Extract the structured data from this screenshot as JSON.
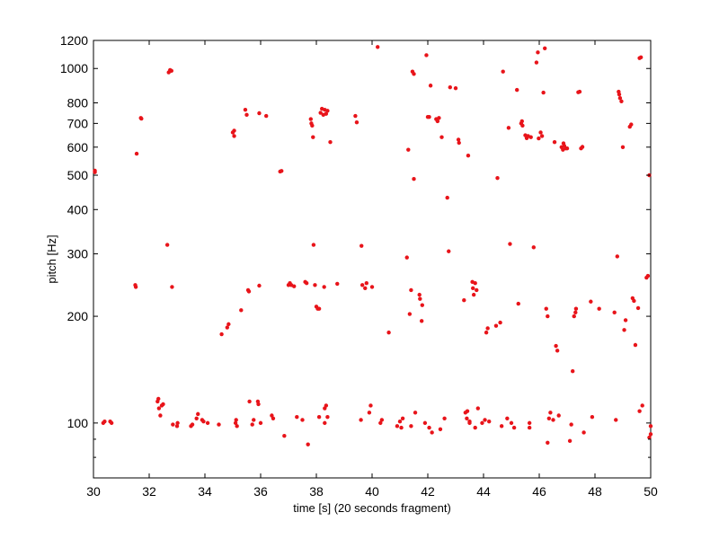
{
  "chart_data": {
    "type": "scatter",
    "title": "",
    "xlabel": "time [s] (20 seconds fragment)",
    "ylabel": "pitch [Hz]",
    "xlim": [
      30,
      50
    ],
    "ylim": [
      70,
      1200
    ],
    "y_scale": "log",
    "grid": false,
    "x_ticks": [
      30,
      32,
      34,
      36,
      38,
      40,
      42,
      44,
      46,
      48,
      50
    ],
    "x_tick_labels": [
      "30",
      "32",
      "34",
      "36",
      "38",
      "40",
      "42",
      "44",
      "46",
      "48",
      "50"
    ],
    "y_ticks": [
      100,
      200,
      300,
      400,
      500,
      600,
      700,
      800,
      1000,
      1200
    ],
    "y_tick_labels": [
      "100",
      "200",
      "300",
      "400",
      "500",
      "600",
      "700",
      "800",
      "1000",
      "1200"
    ],
    "marker_color": "#e8141a",
    "series": [
      {
        "points": [
          [
            30.05,
            515
          ],
          [
            30.05,
            510
          ],
          [
            30.35,
            100
          ],
          [
            30.4,
            101
          ],
          [
            30.6,
            101
          ],
          [
            30.65,
            100
          ],
          [
            31.5,
            245
          ],
          [
            31.52,
            242
          ],
          [
            31.55,
            575
          ],
          [
            31.7,
            725
          ],
          [
            31.72,
            722
          ],
          [
            32.3,
            115
          ],
          [
            32.33,
            117
          ],
          [
            32.35,
            110
          ],
          [
            32.4,
            105
          ],
          [
            32.45,
            112
          ],
          [
            32.5,
            113
          ],
          [
            32.65,
            318
          ],
          [
            32.7,
            975
          ],
          [
            32.75,
            990
          ],
          [
            32.8,
            985
          ],
          [
            32.82,
            242
          ],
          [
            32.85,
            99
          ],
          [
            33.0,
            98
          ],
          [
            33.02,
            100
          ],
          [
            33.5,
            98
          ],
          [
            33.55,
            99
          ],
          [
            33.7,
            103
          ],
          [
            33.75,
            106
          ],
          [
            33.9,
            102
          ],
          [
            33.95,
            101
          ],
          [
            34.1,
            100
          ],
          [
            34.5,
            99
          ],
          [
            34.6,
            178
          ],
          [
            34.8,
            186
          ],
          [
            34.85,
            190
          ],
          [
            35.0,
            660
          ],
          [
            35.05,
            668
          ],
          [
            35.05,
            645
          ],
          [
            35.1,
            100
          ],
          [
            35.12,
            102
          ],
          [
            35.15,
            98
          ],
          [
            35.3,
            208
          ],
          [
            35.45,
            765
          ],
          [
            35.5,
            740
          ],
          [
            35.55,
            237
          ],
          [
            35.58,
            235
          ],
          [
            35.6,
            115
          ],
          [
            35.7,
            99
          ],
          [
            35.75,
            102
          ],
          [
            35.9,
            115
          ],
          [
            35.92,
            113
          ],
          [
            35.95,
            748
          ],
          [
            35.95,
            244
          ],
          [
            36.0,
            100
          ],
          [
            36.2,
            735
          ],
          [
            36.4,
            105
          ],
          [
            36.45,
            103
          ],
          [
            36.7,
            512
          ],
          [
            36.75,
            514
          ],
          [
            36.85,
            92
          ],
          [
            37.0,
            245
          ],
          [
            37.05,
            248
          ],
          [
            37.1,
            245
          ],
          [
            37.2,
            243
          ],
          [
            37.3,
            104
          ],
          [
            37.5,
            102
          ],
          [
            37.6,
            250
          ],
          [
            37.65,
            248
          ],
          [
            37.7,
            87
          ],
          [
            37.8,
            720
          ],
          [
            37.82,
            700
          ],
          [
            37.85,
            690
          ],
          [
            37.88,
            640
          ],
          [
            37.9,
            318
          ],
          [
            37.95,
            245
          ],
          [
            38.0,
            213
          ],
          [
            38.05,
            210
          ],
          [
            38.1,
            210
          ],
          [
            38.1,
            104
          ],
          [
            38.15,
            750
          ],
          [
            38.2,
            770
          ],
          [
            38.25,
            740
          ],
          [
            38.3,
            765
          ],
          [
            38.35,
            745
          ],
          [
            38.4,
            760
          ],
          [
            38.28,
            242
          ],
          [
            38.3,
            100
          ],
          [
            38.3,
            110
          ],
          [
            38.35,
            112
          ],
          [
            38.4,
            104
          ],
          [
            38.5,
            620
          ],
          [
            38.75,
            247
          ],
          [
            39.4,
            735
          ],
          [
            39.45,
            705
          ],
          [
            39.6,
            102
          ],
          [
            39.62,
            316
          ],
          [
            39.65,
            245
          ],
          [
            39.75,
            240
          ],
          [
            39.8,
            248
          ],
          [
            39.9,
            107
          ],
          [
            39.95,
            112
          ],
          [
            40.0,
            242
          ],
          [
            40.2,
            1150
          ],
          [
            40.3,
            100
          ],
          [
            40.35,
            102
          ],
          [
            40.6,
            180
          ],
          [
            40.9,
            98
          ],
          [
            41.0,
            101
          ],
          [
            41.05,
            97
          ],
          [
            41.1,
            103
          ],
          [
            41.25,
            293
          ],
          [
            41.3,
            590
          ],
          [
            41.35,
            203
          ],
          [
            41.4,
            237
          ],
          [
            41.4,
            98
          ],
          [
            41.45,
            980
          ],
          [
            41.5,
            965
          ],
          [
            41.5,
            488
          ],
          [
            41.55,
            107
          ],
          [
            41.7,
            230
          ],
          [
            41.72,
            224
          ],
          [
            41.78,
            194
          ],
          [
            41.8,
            215
          ],
          [
            41.9,
            100
          ],
          [
            41.95,
            1090
          ],
          [
            42.0,
            730
          ],
          [
            42.05,
            730
          ],
          [
            42.05,
            97
          ],
          [
            42.1,
            895
          ],
          [
            42.15,
            94
          ],
          [
            42.3,
            720
          ],
          [
            42.35,
            710
          ],
          [
            42.4,
            725
          ],
          [
            42.45,
            96
          ],
          [
            42.5,
            640
          ],
          [
            42.6,
            103
          ],
          [
            42.7,
            432
          ],
          [
            42.75,
            305
          ],
          [
            42.8,
            885
          ],
          [
            43.0,
            880
          ],
          [
            43.1,
            630
          ],
          [
            43.12,
            617
          ],
          [
            43.3,
            222
          ],
          [
            43.35,
            107
          ],
          [
            43.4,
            103
          ],
          [
            43.42,
            108
          ],
          [
            43.5,
            100
          ],
          [
            43.45,
            568
          ],
          [
            43.5,
            101
          ],
          [
            43.6,
            250
          ],
          [
            43.62,
            240
          ],
          [
            43.65,
            230
          ],
          [
            43.7,
            248
          ],
          [
            43.75,
            237
          ],
          [
            43.8,
            110
          ],
          [
            43.7,
            97
          ],
          [
            43.95,
            100
          ],
          [
            44.05,
            102
          ],
          [
            44.1,
            180
          ],
          [
            44.15,
            185
          ],
          [
            44.2,
            101
          ],
          [
            44.45,
            188
          ],
          [
            44.5,
            491
          ],
          [
            44.6,
            192
          ],
          [
            44.65,
            98
          ],
          [
            44.7,
            980
          ],
          [
            44.85,
            103
          ],
          [
            44.9,
            680
          ],
          [
            44.95,
            320
          ],
          [
            45.0,
            100
          ],
          [
            45.1,
            97
          ],
          [
            45.2,
            870
          ],
          [
            45.25,
            217
          ],
          [
            45.35,
            700
          ],
          [
            45.38,
            710
          ],
          [
            45.4,
            690
          ],
          [
            45.5,
            648
          ],
          [
            45.55,
            636
          ],
          [
            45.6,
            645
          ],
          [
            45.65,
            100
          ],
          [
            45.65,
            97
          ],
          [
            45.7,
            640
          ],
          [
            45.8,
            313
          ],
          [
            45.9,
            1040
          ],
          [
            45.95,
            1110
          ],
          [
            45.98,
            635
          ],
          [
            46.05,
            660
          ],
          [
            46.1,
            645
          ],
          [
            46.15,
            855
          ],
          [
            46.2,
            1140
          ],
          [
            46.25,
            210
          ],
          [
            46.3,
            200
          ],
          [
            46.35,
            103
          ],
          [
            46.4,
            107
          ],
          [
            46.5,
            102
          ],
          [
            46.55,
            620
          ],
          [
            46.6,
            165
          ],
          [
            46.65,
            160
          ],
          [
            46.7,
            105
          ],
          [
            46.8,
            600
          ],
          [
            46.85,
            590
          ],
          [
            46.87,
            615
          ],
          [
            46.9,
            605
          ],
          [
            46.95,
            595
          ],
          [
            47.0,
            595
          ],
          [
            47.1,
            89
          ],
          [
            47.15,
            99
          ],
          [
            47.2,
            140
          ],
          [
            47.25,
            200
          ],
          [
            47.3,
            205
          ],
          [
            47.32,
            210
          ],
          [
            47.4,
            857
          ],
          [
            47.45,
            860
          ],
          [
            47.5,
            595
          ],
          [
            47.55,
            601
          ],
          [
            47.6,
            94
          ],
          [
            47.85,
            220
          ],
          [
            47.9,
            104
          ],
          [
            48.15,
            210
          ],
          [
            48.7,
            205
          ],
          [
            48.75,
            102
          ],
          [
            48.8,
            295
          ],
          [
            48.85,
            860
          ],
          [
            48.87,
            845
          ],
          [
            48.9,
            825
          ],
          [
            48.95,
            808
          ],
          [
            49.0,
            600
          ],
          [
            49.05,
            183
          ],
          [
            49.1,
            195
          ],
          [
            49.25,
            685
          ],
          [
            49.3,
            695
          ],
          [
            49.35,
            225
          ],
          [
            49.4,
            221
          ],
          [
            49.45,
            166
          ],
          [
            49.55,
            211
          ],
          [
            49.6,
            1070
          ],
          [
            49.65,
            1075
          ],
          [
            49.6,
            108
          ],
          [
            49.7,
            112
          ],
          [
            49.85,
            257
          ],
          [
            49.9,
            260
          ],
          [
            49.95,
            500
          ],
          [
            49.95,
            91
          ],
          [
            50.0,
            93
          ],
          [
            50.0,
            98
          ],
          [
            46.3,
            88
          ]
        ]
      }
    ]
  }
}
